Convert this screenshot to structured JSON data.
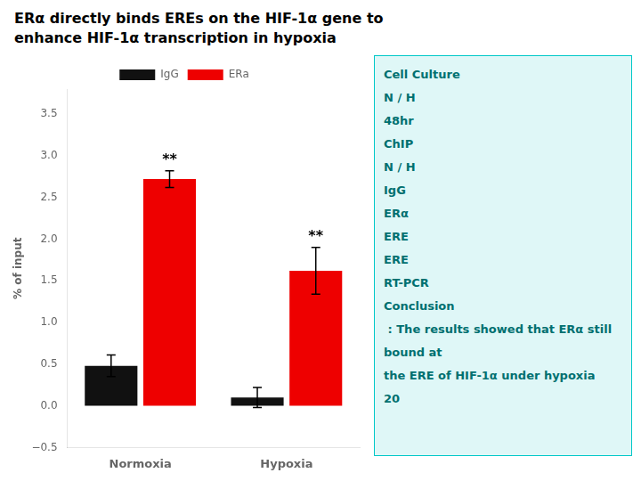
{
  "chart_data": {
    "type": "bar",
    "title": [
      "ERα directly binds EREs on the HIF-1α gene to",
      "enhance HIF-1α transcription in hypoxia"
    ],
    "categories": [
      "Normoxia",
      "Hypoxia"
    ],
    "series": [
      {
        "name": "IgG",
        "color": "#111111",
        "values": [
          0.48,
          0.1
        ],
        "errors": [
          0.13,
          0.12
        ]
      },
      {
        "name": "ERa",
        "color": "#ee0000",
        "values": [
          2.72,
          1.62
        ],
        "errors": [
          0.1,
          0.28
        ]
      }
    ],
    "ylabel": "% of input",
    "ylim": [
      -0.5,
      3.8
    ],
    "yticks": [
      {
        "value": -0.5,
        "label": "−0.5"
      },
      {
        "value": 0,
        "label": "0.0"
      },
      {
        "value": 0.5,
        "label": "0.5"
      },
      {
        "value": 1.0,
        "label": "1.0"
      },
      {
        "value": 1.5,
        "label": "1.5"
      },
      {
        "value": 2.0,
        "label": "2.0"
      },
      {
        "value": 2.5,
        "label": "2.5"
      },
      {
        "value": 3.0,
        "label": "3.0"
      },
      {
        "value": 3.5,
        "label": "3.5"
      }
    ],
    "grid": false,
    "legend": "top",
    "annotations": [
      {
        "text": "**",
        "category": "Normoxia",
        "series": "ERa"
      },
      {
        "text": "**",
        "category": "Hypoxia",
        "series": "ERa"
      },
      "Cell Culture",
      "N / H",
      "48hr",
      "ChIP",
      "N / H",
      "IgG",
      "ERα",
      "ERE",
      "ERE",
      "RT-PCR",
      "Conclusion",
      " : The results showed that ERα still bound at",
      "the ERE of HIF-1α under hypoxia",
      "20"
    ]
  }
}
